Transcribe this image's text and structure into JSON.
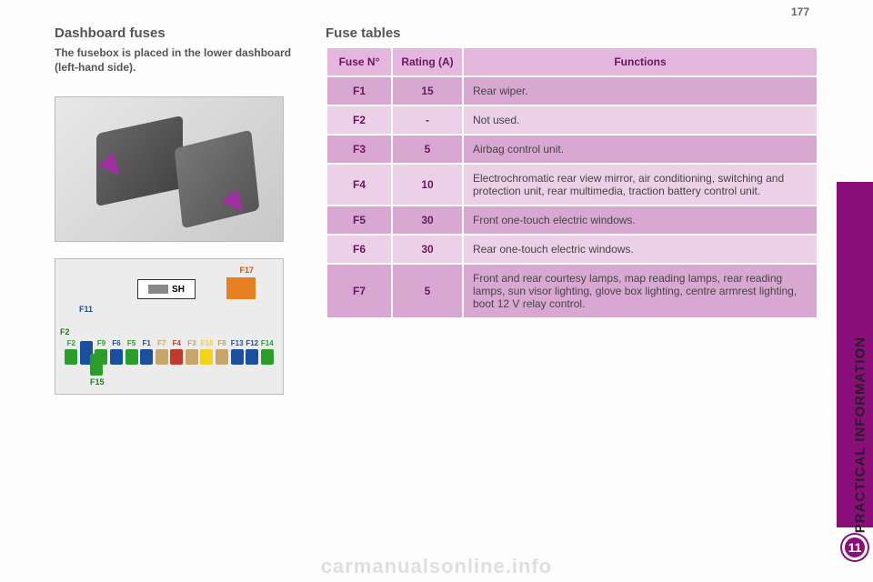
{
  "page_number": "177",
  "side_tab_text": "PRACTICAL INFORMATION",
  "side_badge": "11",
  "watermark": "carmanualsonline.info",
  "left": {
    "heading": "Dashboard fuses",
    "description": "The fusebox is placed in the lower dashboard (left-hand side).",
    "sh_label": "SH",
    "f17_label": "F17",
    "f11_label": "F11",
    "f2_label": "F2",
    "f15_label": "F15",
    "fuses_row": [
      {
        "label": "F2",
        "color": "#2a9d2a",
        "tall": false
      },
      {
        "label": "",
        "color": "#1a4fa0",
        "tall": true
      },
      {
        "label": "F9",
        "color": "#2a9d2a",
        "tall": false
      },
      {
        "label": "F6",
        "color": "#1a4fa0",
        "tall": false
      },
      {
        "label": "F5",
        "color": "#2a9d2a",
        "tall": false
      },
      {
        "label": "F1",
        "color": "#1a4fa0",
        "tall": false
      },
      {
        "label": "F7",
        "color": "#c6a56b",
        "tall": false
      },
      {
        "label": "F4",
        "color": "#c0392b",
        "tall": false
      },
      {
        "label": "F3",
        "color": "#c6a56b",
        "tall": false
      },
      {
        "label": "F10",
        "color": "#f3d21a",
        "tall": false
      },
      {
        "label": "F8",
        "color": "#c6a56b",
        "tall": false
      },
      {
        "label": "F13",
        "color": "#1a4fa0",
        "tall": false
      },
      {
        "label": "F12",
        "color": "#1a4fa0",
        "tall": false
      },
      {
        "label": "F14",
        "color": "#2a9d2a",
        "tall": false
      }
    ],
    "f15_color": "#2a9d2a"
  },
  "table": {
    "heading": "Fuse tables",
    "headers": {
      "fuse": "Fuse N°",
      "rating": "Rating (A)",
      "func": "Functions"
    },
    "header_bg": "#e5b7df",
    "row_bg_dark": "#d9a8d2",
    "row_bg_light": "#ecd0e8",
    "rows": [
      {
        "fuse": "F1",
        "rating": "15",
        "func": "Rear wiper."
      },
      {
        "fuse": "F2",
        "rating": "-",
        "func": "Not used."
      },
      {
        "fuse": "F3",
        "rating": "5",
        "func": "Airbag control unit."
      },
      {
        "fuse": "F4",
        "rating": "10",
        "func": "Electrochromatic rear view mirror, air conditioning, switching and protection unit, rear multimedia, traction battery control unit."
      },
      {
        "fuse": "F5",
        "rating": "30",
        "func": "Front one-touch electric windows."
      },
      {
        "fuse": "F6",
        "rating": "30",
        "func": "Rear one-touch electric windows."
      },
      {
        "fuse": "F7",
        "rating": "5",
        "func": "Front and rear courtesy lamps, map reading lamps, rear reading lamps, sun visor lighting, glove box lighting, centre armrest lighting, boot 12 V relay control."
      }
    ]
  }
}
